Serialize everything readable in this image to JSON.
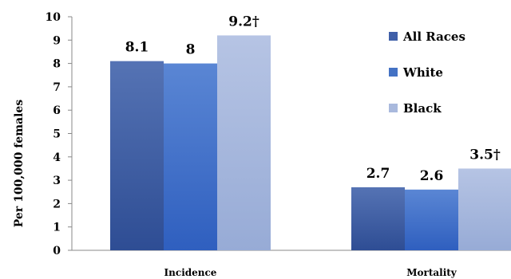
{
  "chart_data": {
    "type": "bar",
    "categories": [
      "Incidence",
      "Mortality"
    ],
    "series": [
      {
        "name": "All Races",
        "values": [
          8.1,
          2.7
        ],
        "labels": [
          "8.1",
          "2.7"
        ],
        "color": "#3f5fa8"
      },
      {
        "name": "White",
        "values": [
          8.0,
          2.6
        ],
        "labels": [
          "8",
          "2.6"
        ],
        "color": "#4472c4"
      },
      {
        "name": "Black",
        "values": [
          9.2,
          3.5
        ],
        "labels": [
          "9.2†",
          "3.5†"
        ],
        "color": "#a9b9dd"
      }
    ],
    "ylabel": "Per 100,000 females",
    "ylim": [
      0,
      10
    ],
    "yticks": [
      "0",
      "1",
      "2",
      "3",
      "4",
      "5",
      "6",
      "7",
      "8",
      "9",
      "10"
    ],
    "legend_position": "top-right",
    "grid": false
  }
}
